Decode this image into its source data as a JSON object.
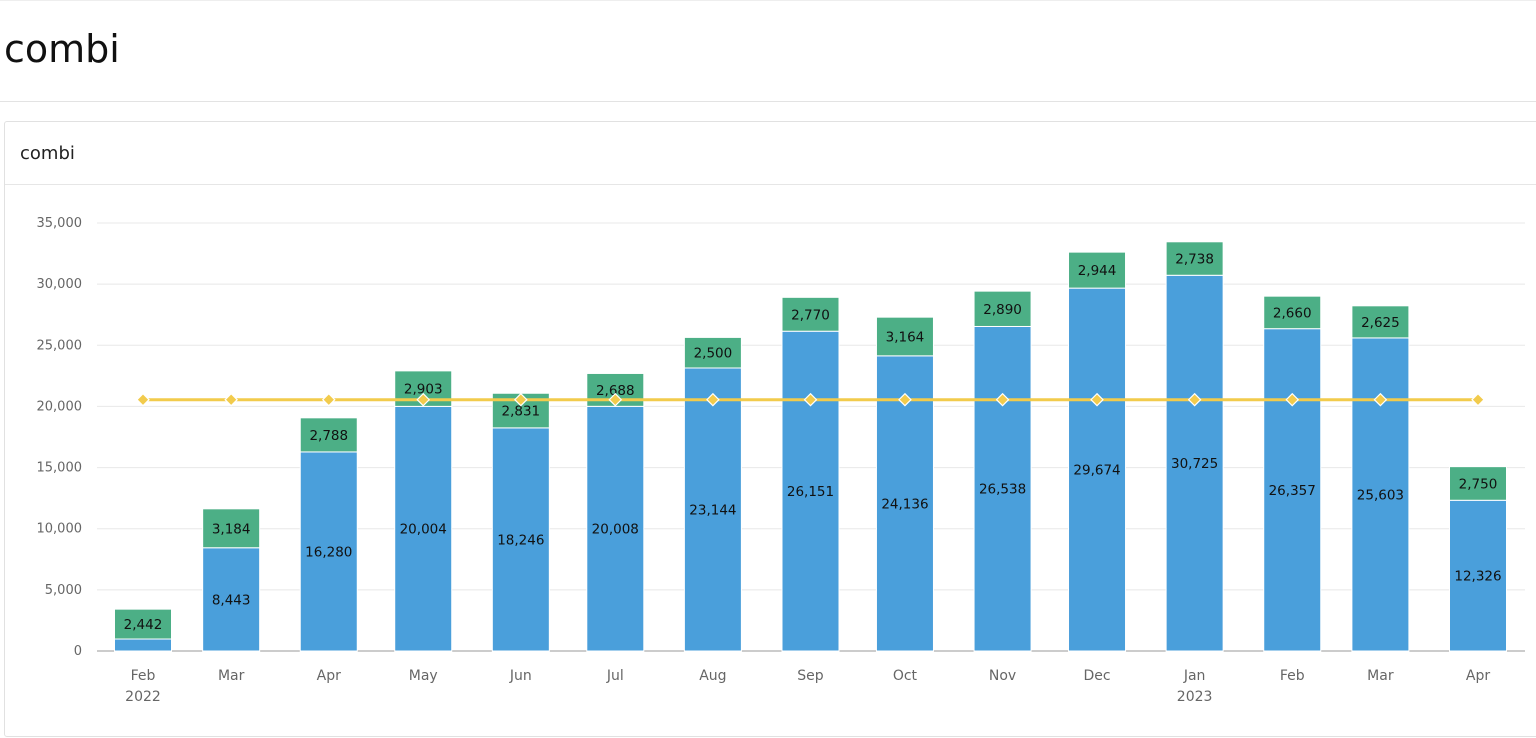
{
  "page": {
    "title": "combi"
  },
  "card": {
    "title": "combi"
  },
  "chart_data": {
    "type": "bar",
    "stacked": true,
    "title": "combi",
    "categories": [
      "Feb 2022",
      "Mar",
      "Apr",
      "May",
      "Jun",
      "Jul",
      "Aug",
      "Sep",
      "Oct",
      "Nov",
      "Dec",
      "Jan 2023",
      "Feb",
      "Mar",
      "Apr"
    ],
    "dates": [
      "2022-02-01",
      "2022-03-01",
      "2022-04-01",
      "2022-05-01",
      "2022-06-01",
      "2022-07-01",
      "2022-08-01",
      "2022-09-01",
      "2022-10-01",
      "2022-11-01",
      "2022-12-01",
      "2023-01-01",
      "2023-02-01",
      "2023-03-01",
      "2023-04-01"
    ],
    "tick_labels": [
      [
        "Feb",
        "2022"
      ],
      [
        "Mar",
        ""
      ],
      [
        "Apr",
        ""
      ],
      [
        "May",
        ""
      ],
      [
        "Jun",
        ""
      ],
      [
        "Jul",
        ""
      ],
      [
        "Aug",
        ""
      ],
      [
        "Sep",
        ""
      ],
      [
        "Oct",
        ""
      ],
      [
        "Nov",
        ""
      ],
      [
        "Dec",
        ""
      ],
      [
        "Jan",
        "2023"
      ],
      [
        "Feb",
        ""
      ],
      [
        "Mar",
        ""
      ],
      [
        "Apr",
        ""
      ]
    ],
    "series": [
      {
        "type": "bar",
        "color": "#4a9fdb",
        "values": [
          980,
          8443,
          16280,
          20004,
          18246,
          20008,
          23144,
          26151,
          24136,
          26538,
          29674,
          30725,
          26357,
          25603,
          12326
        ],
        "labels": [
          "",
          "8,443",
          "16,280",
          "20,004",
          "18,246",
          "20,008",
          "23,144",
          "26,151",
          "24,136",
          "26,538",
          "29,674",
          "30,725",
          "26,357",
          "25,603",
          "12,326"
        ]
      },
      {
        "type": "bar",
        "color": "#4caf86",
        "values": [
          2442,
          3184,
          2788,
          2903,
          2831,
          2688,
          2500,
          2770,
          3164,
          2890,
          2944,
          2738,
          2660,
          2625,
          2750
        ],
        "labels": [
          "2,442",
          "3,184",
          "2,788",
          "2,903",
          "2,831",
          "2,688",
          "2,500",
          "2,770",
          "3,164",
          "2,890",
          "2,944",
          "2,738",
          "2,660",
          "2,625",
          "2,750"
        ]
      },
      {
        "type": "line",
        "color": "#f2cb4c",
        "values": [
          20550,
          20550,
          20550,
          20550,
          20550,
          20550,
          20550,
          20550,
          20550,
          20550,
          20550,
          20550,
          20550,
          20550,
          20550
        ]
      }
    ],
    "ylim": [
      0,
      35000
    ],
    "yticks": [
      "0",
      "5,000",
      "10,000",
      "15,000",
      "20,000",
      "25,000",
      "30,000",
      "35,000"
    ],
    "grid": true
  }
}
